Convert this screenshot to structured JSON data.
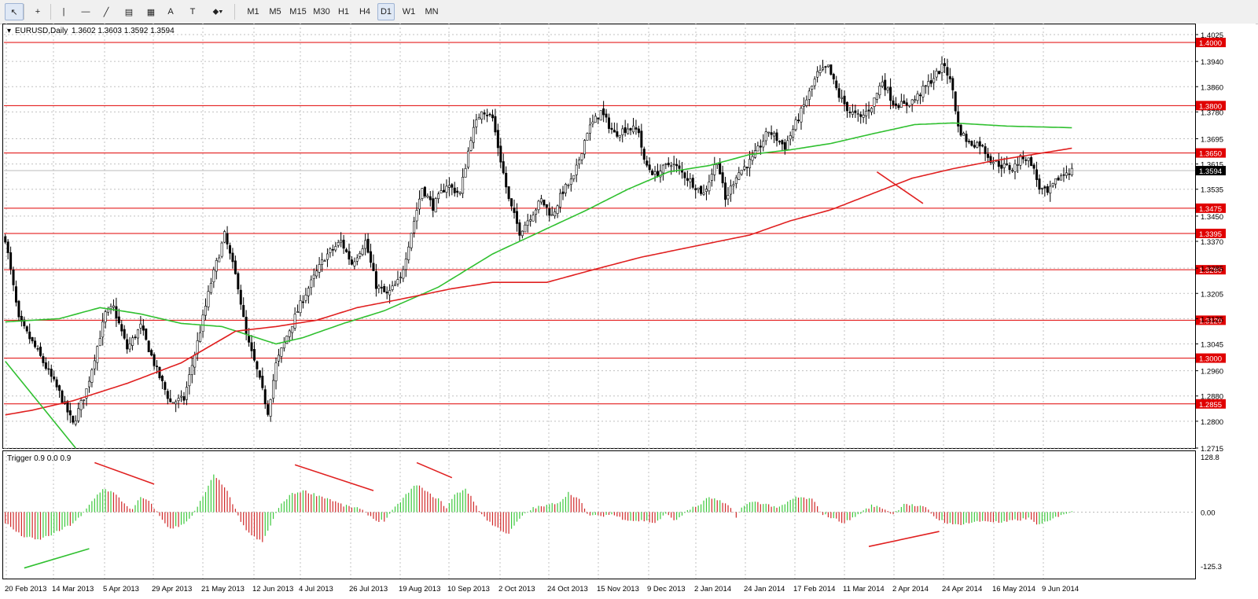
{
  "toolbar": {
    "tools": [
      {
        "name": "cursor-icon",
        "glyph": "↖"
      },
      {
        "name": "crosshair-icon",
        "glyph": "+"
      },
      {
        "name": "vertical-line-icon",
        "glyph": "|"
      },
      {
        "name": "horizontal-line-icon",
        "glyph": "—"
      },
      {
        "name": "trendline-icon",
        "glyph": "╱"
      },
      {
        "name": "equidistant-channel-icon",
        "glyph": "▤"
      },
      {
        "name": "fibonacci-retracement-icon",
        "glyph": "▦"
      },
      {
        "name": "text-icon",
        "glyph": "A"
      },
      {
        "name": "text-label-icon",
        "glyph": "T"
      },
      {
        "name": "shapes-dropdown-icon",
        "glyph": "⬥▾"
      }
    ],
    "timeframes": [
      "M1",
      "M5",
      "M15",
      "M30",
      "H1",
      "H4",
      "D1",
      "W1",
      "MN"
    ],
    "active_timeframe": "D1"
  },
  "chart_header": {
    "symbol": "EURUSD,Daily",
    "ohlc": "1.3602 1.3603 1.3592 1.3594"
  },
  "colors": {
    "up": "#00b000",
    "down": "#d00000",
    "level": "#e00000",
    "ma_fast": "#30c030",
    "ma_slow": "#e02020",
    "hist_pos": "#3cc83c",
    "hist_neg": "#d02828"
  },
  "chart_data": {
    "type": "candlestick",
    "symbol": "EURUSD",
    "timeframe": "Daily",
    "price_axis": {
      "ticks": [
        "1.4025",
        "1.3940",
        "1.3860",
        "1.3780",
        "1.3695",
        "1.3615",
        "1.3535",
        "1.3450",
        "1.3370",
        "1.3285",
        "1.3205",
        "1.3125",
        "1.3045",
        "1.2960",
        "1.2880",
        "1.2800",
        "1.2715"
      ],
      "range": [
        1.2715,
        1.4025
      ]
    },
    "horizontal_levels": [
      "1.4000",
      "1.3800",
      "1.3650",
      "1.3475",
      "1.3395",
      "1.3280",
      "1.3120",
      "1.3000",
      "1.2855"
    ],
    "current_price": "1.3594",
    "date_labels": [
      "20 Feb 2013",
      "14 Mar 2013",
      "5 Apr 2013",
      "29 Apr 2013",
      "21 May 2013",
      "12 Jun 2013",
      "4 Jul 2013",
      "26 Jul 2013",
      "19 Aug 2013",
      "10 Sep 2013",
      "2 Oct 2013",
      "24 Oct 2013",
      "15 Nov 2013",
      "9 Dec 2013",
      "2 Jan 2014",
      "24 Jan 2014",
      "17 Feb 2014",
      "11 Mar 2014",
      "2 Apr 2014",
      "24 Apr 2014",
      "16 May 2014",
      "9 Jun 2014"
    ],
    "close_keypoints": [
      [
        0,
        1.338
      ],
      [
        5,
        1.312
      ],
      [
        12,
        1.302
      ],
      [
        20,
        1.289
      ],
      [
        25,
        1.279
      ],
      [
        30,
        1.29
      ],
      [
        37,
        1.314
      ],
      [
        40,
        1.316
      ],
      [
        45,
        1.303
      ],
      [
        50,
        1.31
      ],
      [
        56,
        1.296
      ],
      [
        61,
        1.286
      ],
      [
        66,
        1.287
      ],
      [
        71,
        1.305
      ],
      [
        76,
        1.324
      ],
      [
        81,
        1.339
      ],
      [
        86,
        1.323
      ],
      [
        89,
        1.307
      ],
      [
        93,
        1.296
      ],
      [
        97,
        1.283
      ],
      [
        100,
        1.298
      ],
      [
        104,
        1.307
      ],
      [
        110,
        1.319
      ],
      [
        118,
        1.332
      ],
      [
        124,
        1.337
      ],
      [
        128,
        1.33
      ],
      [
        133,
        1.337
      ],
      [
        137,
        1.323
      ],
      [
        141,
        1.32
      ],
      [
        146,
        1.325
      ],
      [
        150,
        1.34
      ],
      [
        154,
        1.354
      ],
      [
        158,
        1.348
      ],
      [
        163,
        1.355
      ],
      [
        168,
        1.352
      ],
      [
        172,
        1.37
      ],
      [
        176,
        1.379
      ],
      [
        180,
        1.376
      ],
      [
        182,
        1.367
      ],
      [
        186,
        1.35
      ],
      [
        190,
        1.34
      ],
      [
        194,
        1.345
      ],
      [
        198,
        1.35
      ],
      [
        202,
        1.345
      ],
      [
        206,
        1.353
      ],
      [
        210,
        1.357
      ],
      [
        215,
        1.372
      ],
      [
        220,
        1.378
      ],
      [
        225,
        1.371
      ],
      [
        230,
        1.373
      ],
      [
        234,
        1.372
      ],
      [
        236,
        1.362
      ],
      [
        240,
        1.358
      ],
      [
        246,
        1.362
      ],
      [
        252,
        1.357
      ],
      [
        258,
        1.352
      ],
      [
        263,
        1.363
      ],
      [
        266,
        1.35
      ],
      [
        270,
        1.358
      ],
      [
        276,
        1.363
      ],
      [
        282,
        1.372
      ],
      [
        288,
        1.367
      ],
      [
        294,
        1.378
      ],
      [
        300,
        1.39
      ],
      [
        304,
        1.392
      ],
      [
        308,
        1.383
      ],
      [
        312,
        1.378
      ],
      [
        316,
        1.376
      ],
      [
        320,
        1.38
      ],
      [
        324,
        1.388
      ],
      [
        328,
        1.381
      ],
      [
        332,
        1.38
      ],
      [
        336,
        1.382
      ],
      [
        340,
        1.386
      ],
      [
        344,
        1.39
      ],
      [
        347,
        1.393
      ],
      [
        350,
        1.385
      ],
      [
        352,
        1.373
      ],
      [
        356,
        1.368
      ],
      [
        360,
        1.368
      ],
      [
        364,
        1.363
      ],
      [
        368,
        1.361
      ],
      [
        372,
        1.36
      ],
      [
        376,
        1.364
      ],
      [
        379,
        1.362
      ],
      [
        382,
        1.354
      ],
      [
        385,
        1.352
      ],
      [
        389,
        1.357
      ],
      [
        392,
        1.359
      ],
      [
        394,
        1.3594
      ]
    ],
    "moving_averages": [
      {
        "name": "MA fast",
        "color": "#30c030",
        "points": [
          [
            0,
            1.3115
          ],
          [
            20,
            1.3125
          ],
          [
            35,
            1.316
          ],
          [
            50,
            1.314
          ],
          [
            65,
            1.311
          ],
          [
            80,
            1.31
          ],
          [
            100,
            1.3045
          ],
          [
            110,
            1.3065
          ],
          [
            125,
            1.311
          ],
          [
            140,
            1.315
          ],
          [
            160,
            1.3225
          ],
          [
            180,
            1.333
          ],
          [
            200,
            1.341
          ],
          [
            215,
            1.347
          ],
          [
            230,
            1.3535
          ],
          [
            245,
            1.359
          ],
          [
            260,
            1.361
          ],
          [
            275,
            1.3645
          ],
          [
            290,
            1.366
          ],
          [
            305,
            1.368
          ],
          [
            320,
            1.371
          ],
          [
            336,
            1.374
          ],
          [
            350,
            1.3745
          ],
          [
            370,
            1.3735
          ],
          [
            394,
            1.373
          ]
        ]
      },
      {
        "name": "MA slow",
        "color": "#e02020",
        "points": [
          [
            0,
            1.282
          ],
          [
            10,
            1.2835
          ],
          [
            25,
            1.2865
          ],
          [
            45,
            1.292
          ],
          [
            65,
            1.2985
          ],
          [
            85,
            1.3085
          ],
          [
            100,
            1.31
          ],
          [
            115,
            1.312
          ],
          [
            130,
            1.316
          ],
          [
            145,
            1.3185
          ],
          [
            165,
            1.322
          ],
          [
            180,
            1.324
          ],
          [
            200,
            1.324
          ],
          [
            215,
            1.3275
          ],
          [
            235,
            1.332
          ],
          [
            255,
            1.3355
          ],
          [
            275,
            1.339
          ],
          [
            290,
            1.3435
          ],
          [
            305,
            1.347
          ],
          [
            320,
            1.352
          ],
          [
            335,
            1.357
          ],
          [
            350,
            1.36
          ],
          [
            365,
            1.3625
          ],
          [
            394,
            1.3665
          ]
        ]
      }
    ],
    "trendlines_price": [
      {
        "color": "#30c030",
        "from": [
          0,
          1.299
        ],
        "to": [
          26,
          1.2715
        ]
      },
      {
        "color": "#e02020",
        "from": [
          322,
          1.359
        ],
        "to": [
          339,
          1.349
        ]
      }
    ],
    "indicator": {
      "title": "Trigger 0.9 0.0 0.9",
      "type": "histogram",
      "ticks": [
        "128.8",
        "0.00",
        "-125.3"
      ],
      "range": [
        -125.3,
        128.8
      ],
      "keypoints": [
        [
          0,
          -25
        ],
        [
          6,
          -55
        ],
        [
          12,
          -65
        ],
        [
          18,
          -50
        ],
        [
          24,
          -30
        ],
        [
          28,
          -10
        ],
        [
          32,
          25
        ],
        [
          36,
          55
        ],
        [
          40,
          45
        ],
        [
          44,
          20
        ],
        [
          47,
          5
        ],
        [
          50,
          35
        ],
        [
          54,
          20
        ],
        [
          57,
          -10
        ],
        [
          61,
          -40
        ],
        [
          65,
          -30
        ],
        [
          69,
          -10
        ],
        [
          73,
          35
        ],
        [
          77,
          85
        ],
        [
          81,
          60
        ],
        [
          84,
          20
        ],
        [
          87,
          -25
        ],
        [
          91,
          -55
        ],
        [
          95,
          -70
        ],
        [
          98,
          -30
        ],
        [
          101,
          10
        ],
        [
          105,
          40
        ],
        [
          110,
          50
        ],
        [
          115,
          40
        ],
        [
          120,
          30
        ],
        [
          125,
          15
        ],
        [
          130,
          10
        ],
        [
          134,
          -5
        ],
        [
          137,
          -20
        ],
        [
          140,
          -20
        ],
        [
          144,
          10
        ],
        [
          148,
          40
        ],
        [
          152,
          65
        ],
        [
          156,
          45
        ],
        [
          160,
          30
        ],
        [
          163,
          10
        ],
        [
          166,
          40
        ],
        [
          170,
          55
        ],
        [
          173,
          25
        ],
        [
          176,
          -5
        ],
        [
          180,
          -30
        ],
        [
          184,
          -45
        ],
        [
          186,
          -50
        ],
        [
          190,
          -15
        ],
        [
          195,
          10
        ],
        [
          200,
          15
        ],
        [
          205,
          25
        ],
        [
          208,
          45
        ],
        [
          212,
          30
        ],
        [
          215,
          -5
        ],
        [
          219,
          -10
        ],
        [
          224,
          -5
        ],
        [
          228,
          -15
        ],
        [
          232,
          -20
        ],
        [
          236,
          -20
        ],
        [
          240,
          -25
        ],
        [
          244,
          -5
        ],
        [
          248,
          -20
        ],
        [
          252,
          5
        ],
        [
          256,
          15
        ],
        [
          260,
          35
        ],
        [
          264,
          25
        ],
        [
          268,
          10
        ],
        [
          270,
          -10
        ],
        [
          272,
          10
        ],
        [
          276,
          25
        ],
        [
          280,
          20
        ],
        [
          286,
          10
        ],
        [
          292,
          35
        ],
        [
          298,
          30
        ],
        [
          302,
          -5
        ],
        [
          306,
          -15
        ],
        [
          310,
          -25
        ],
        [
          314,
          -10
        ],
        [
          320,
          15
        ],
        [
          324,
          10
        ],
        [
          328,
          -5
        ],
        [
          332,
          20
        ],
        [
          336,
          15
        ],
        [
          340,
          10
        ],
        [
          344,
          -15
        ],
        [
          348,
          -25
        ],
        [
          350,
          -30
        ],
        [
          356,
          -25
        ],
        [
          362,
          -20
        ],
        [
          368,
          -25
        ],
        [
          372,
          -20
        ],
        [
          378,
          -15
        ],
        [
          382,
          -30
        ],
        [
          386,
          -20
        ],
        [
          390,
          -5
        ],
        [
          394,
          0
        ]
      ]
    },
    "trendlines_indicator": [
      {
        "color": "#30c030",
        "from": [
          7,
          -130
        ],
        "to": [
          31,
          -85
        ]
      },
      {
        "color": "#e02020",
        "from": [
          33,
          115
        ],
        "to": [
          55,
          65
        ]
      },
      {
        "color": "#e02020",
        "from": [
          107,
          110
        ],
        "to": [
          136,
          50
        ]
      },
      {
        "color": "#e02020",
        "from": [
          152,
          115
        ],
        "to": [
          165,
          80
        ]
      },
      {
        "color": "#e02020",
        "from": [
          319,
          -80
        ],
        "to": [
          345,
          -45
        ]
      }
    ]
  }
}
